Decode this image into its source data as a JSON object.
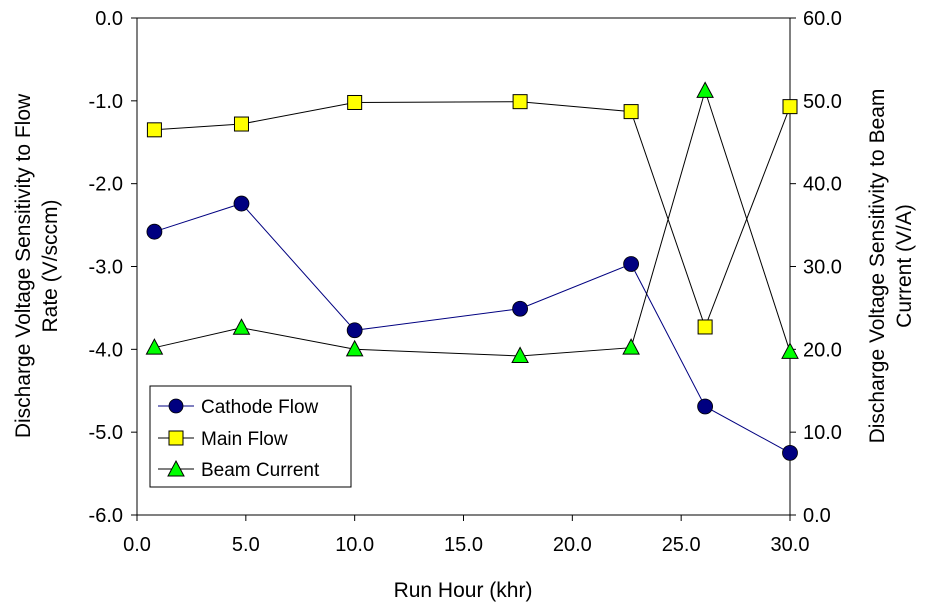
{
  "chart_data": {
    "type": "line",
    "xlabel": "Run Hour (khr)",
    "ylabel_left": [
      "Discharge Voltage Sensitivity to Flow",
      "Rate (V/sccm)"
    ],
    "ylabel_right": [
      "Discharge Voltage Sensitivity to Beam",
      "Current (V/A)"
    ],
    "xlim": [
      0,
      30
    ],
    "ylim_left": [
      -6,
      0
    ],
    "ylim_right": [
      0,
      60
    ],
    "x_ticks": [
      "0.0",
      "5.0",
      "10.0",
      "15.0",
      "20.0",
      "25.0",
      "30.0"
    ],
    "y_ticks_left": [
      "-6.0",
      "-5.0",
      "-4.0",
      "-3.0",
      "-2.0",
      "-1.0",
      "0.0"
    ],
    "y_ticks_right": [
      "0.0",
      "10.0",
      "20.0",
      "30.0",
      "40.0",
      "50.0",
      "60.0"
    ],
    "grid": false,
    "legend_position": "bottom-left",
    "series": [
      {
        "name": "Cathode Flow",
        "axis": "left",
        "marker": "circle",
        "line_color": "#000080",
        "marker_color": "#000080",
        "x": [
          0.8,
          4.8,
          10.0,
          17.6,
          22.7,
          26.1,
          30.0
        ],
        "values": [
          -2.58,
          -2.24,
          -3.77,
          -3.51,
          -2.97,
          -4.69,
          -5.25
        ]
      },
      {
        "name": "Main Flow",
        "axis": "left",
        "marker": "square",
        "line_color": "#000000",
        "marker_color": "#ffff00",
        "x": [
          0.8,
          4.8,
          10.0,
          17.6,
          22.7,
          26.1,
          30.0
        ],
        "values": [
          -1.35,
          -1.28,
          -1.02,
          -1.01,
          -1.13,
          -3.73,
          -1.07
        ]
      },
      {
        "name": "Beam Current",
        "axis": "right",
        "marker": "triangle",
        "line_color": "#000000",
        "marker_color": "#00ff00",
        "x": [
          0.8,
          4.8,
          10.0,
          17.6,
          22.7,
          26.1,
          30.0
        ],
        "values": [
          20.2,
          22.6,
          20.0,
          19.2,
          20.2,
          51.2,
          19.7
        ]
      }
    ]
  }
}
